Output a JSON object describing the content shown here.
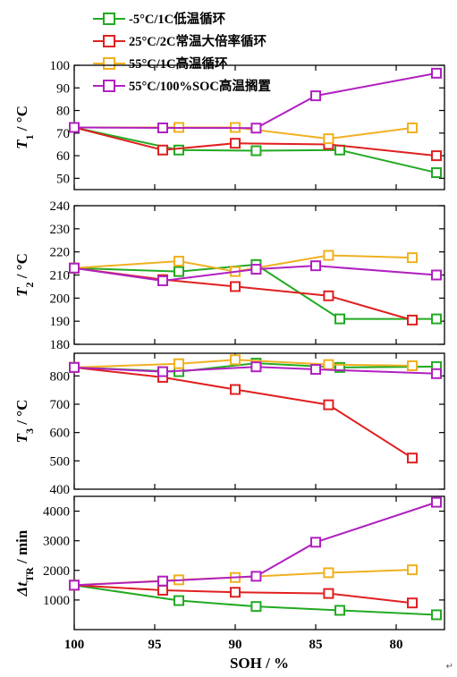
{
  "chart_data": {
    "type": "line",
    "x": [
      100,
      94.5,
      93.5,
      90,
      88.7,
      85,
      84.2,
      83.5,
      81.2,
      77.5
    ],
    "xlim": [
      100,
      77
    ],
    "x_ticks": [
      100,
      95,
      90,
      85,
      80
    ],
    "xlabel": "SOH / %",
    "legend_position": "top",
    "grid": false,
    "series": [
      {
        "name": "-5°C/1C低温循环",
        "color": "#22aa22"
      },
      {
        "name": "25°C/2C常温大倍率循环",
        "color": "#e02020"
      },
      {
        "name": "55°C/1C高温循环",
        "color": "#f0b020"
      },
      {
        "name": "55°C/100%SOC高温搁置",
        "color": "#b020c0"
      }
    ],
    "panels": [
      {
        "ylabel": "T1 / °C",
        "ylim": [
          45,
          100
        ],
        "y_ticks": [
          50,
          60,
          70,
          80,
          90,
          100
        ],
        "series_points": [
          {
            "x": [
              100,
              93.5,
              88.7,
              83.5,
              77.5
            ],
            "y": [
              72.5,
              62.5,
              62.2,
              62.5,
              52.5
            ]
          },
          {
            "x": [
              100,
              94.5,
              90,
              84.2,
              77.5
            ],
            "y": [
              72.5,
              62.5,
              65.5,
              65.0,
              60.0
            ]
          },
          {
            "x": [
              100,
              93.5,
              90,
              84.2,
              79
            ],
            "y": [
              72.5,
              72.5,
              72.5,
              67.5,
              72.3
            ]
          },
          {
            "x": [
              100,
              94.5,
              88.7,
              85,
              77.5
            ],
            "y": [
              72.5,
              72.3,
              72.2,
              86.5,
              96.5
            ]
          }
        ]
      },
      {
        "ylabel": "T2 / °C",
        "ylim": [
          180,
          240
        ],
        "y_ticks": [
          180,
          190,
          200,
          210,
          220,
          230,
          240
        ],
        "series_points": [
          {
            "x": [
              100,
              93.5,
              88.7,
              83.5,
              77.5
            ],
            "y": [
              213,
              211.5,
              214.5,
              191,
              191
            ]
          },
          {
            "x": [
              100,
              94.5,
              90,
              84.2,
              79
            ],
            "y": [
              213,
              208,
              205,
              201,
              190.5
            ]
          },
          {
            "x": [
              100,
              93.5,
              90,
              84.2,
              79
            ],
            "y": [
              213,
              216,
              211.5,
              218.5,
              217.5
            ]
          },
          {
            "x": [
              100,
              94.5,
              88.7,
              85,
              77.5
            ],
            "y": [
              213,
              207.5,
              212.5,
              214,
              210
            ]
          }
        ]
      },
      {
        "ylabel": "T3 / °C",
        "ylim": [
          400,
          880
        ],
        "y_ticks": [
          400,
          500,
          600,
          700,
          800
        ],
        "series_points": [
          {
            "x": [
              100,
              93.5,
              88.7,
              83.5,
              77.5
            ],
            "y": [
              830,
              815,
              845,
              830,
              833
            ]
          },
          {
            "x": [
              100,
              94.5,
              90,
              84.2,
              79
            ],
            "y": [
              830,
              795,
              752,
              698,
              510
            ]
          },
          {
            "x": [
              100,
              93.5,
              90,
              84.2,
              79
            ],
            "y": [
              830,
              843,
              857,
              840,
              836
            ]
          },
          {
            "x": [
              100,
              94.5,
              88.7,
              85,
              77.5
            ],
            "y": [
              830,
              815,
              832,
              823,
              808
            ]
          }
        ]
      },
      {
        "ylabel": "ΔtTR / min",
        "ylim": [
          0,
          4500
        ],
        "y_ticks": [
          1000,
          2000,
          3000,
          4000
        ],
        "series_points": [
          {
            "x": [
              100,
              93.5,
              88.7,
              83.5,
              77.5
            ],
            "y": [
              1500,
              980,
              780,
              650,
              500
            ]
          },
          {
            "x": [
              100,
              94.5,
              90,
              84.2,
              79
            ],
            "y": [
              1500,
              1330,
              1260,
              1220,
              900
            ]
          },
          {
            "x": [
              100,
              93.5,
              90,
              84.2,
              79
            ],
            "y": [
              1500,
              1680,
              1760,
              1920,
              2020
            ]
          },
          {
            "x": [
              100,
              94.5,
              88.7,
              85,
              77.5
            ],
            "y": [
              1500,
              1640,
              1800,
              2950,
              4300
            ]
          }
        ]
      }
    ]
  },
  "corner_mark": "↵"
}
